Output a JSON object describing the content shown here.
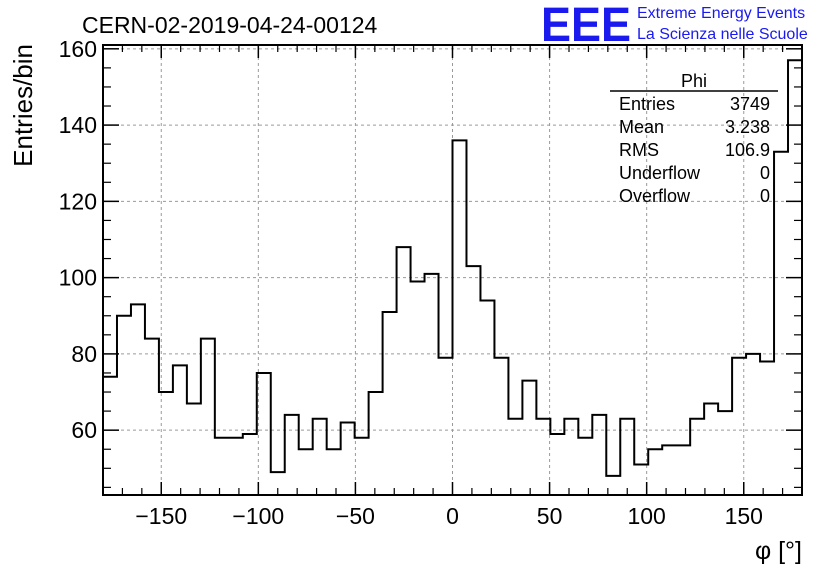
{
  "chart_data": {
    "type": "histogram",
    "title": "CERN-02-2019-04-24-00124",
    "xlabel": "φ [°]",
    "ylabel": "Entries/bin",
    "xlim": [
      -180,
      180
    ],
    "ylim": [
      43,
      161
    ],
    "bin_width": 7.2,
    "x_ticks": [
      -150,
      -100,
      -50,
      0,
      50,
      100,
      150
    ],
    "x_tick_labels": [
      "−150",
      "−100",
      "−50",
      "0",
      "50",
      "100",
      "150"
    ],
    "y_ticks": [
      60,
      80,
      100,
      120,
      140,
      160
    ],
    "y_tick_labels": [
      "60",
      "80",
      "100",
      "120",
      "140",
      "160"
    ],
    "grid": true,
    "values": [
      74,
      90,
      93,
      84,
      70,
      77,
      67,
      84,
      58,
      58,
      59,
      75,
      49,
      64,
      55,
      63,
      55,
      62,
      58,
      70,
      91,
      108,
      99,
      101,
      79,
      136,
      103,
      94,
      79,
      63,
      73,
      63,
      59,
      63,
      58,
      64,
      48,
      63,
      51,
      55,
      56,
      56,
      63,
      67,
      65,
      79,
      80,
      78,
      133,
      157
    ],
    "stats": {
      "name": "Phi",
      "rows": [
        {
          "label": "Entries",
          "value": "3749"
        },
        {
          "label": "Mean",
          "value": "3.238"
        },
        {
          "label": "RMS",
          "value": "106.9"
        },
        {
          "label": "Underflow",
          "value": "0"
        },
        {
          "label": "Overflow",
          "value": "0"
        }
      ]
    }
  },
  "logo": {
    "mark": "EEE",
    "line1": "Extreme Energy Events",
    "line2": "La Scienza nelle Scuole",
    "color": "#1a1aee"
  }
}
